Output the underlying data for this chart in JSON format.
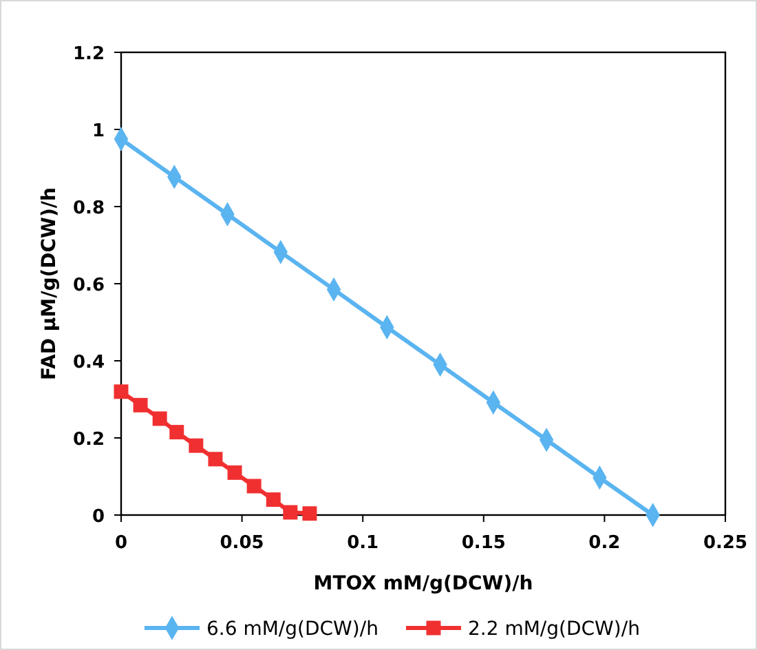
{
  "chart_data": {
    "type": "line",
    "xlabel": "MTOX mM/g(DCW)/h",
    "ylabel": "FAD μM/g(DCW)/h",
    "xlim": [
      0,
      0.25
    ],
    "xticks": [
      0,
      0.05,
      0.1,
      0.15,
      0.2,
      0.25
    ],
    "ylim": [
      0,
      1.2
    ],
    "yticks": [
      0,
      0.2,
      0.4,
      0.6,
      0.8,
      1,
      1.2
    ],
    "grid": false,
    "legend": "bottom",
    "series": [
      {
        "name": "6.6 mM/g(DCW)/h",
        "color": "#5ab4f0",
        "marker": "diamond",
        "x": [
          0,
          0.022,
          0.044,
          0.066,
          0.088,
          0.11,
          0.132,
          0.154,
          0.176,
          0.198,
          0.22
        ],
        "values": [
          0.975,
          0.877,
          0.78,
          0.682,
          0.585,
          0.487,
          0.39,
          0.292,
          0.195,
          0.097,
          0
        ]
      },
      {
        "name": "2.2 mM/g(DCW)/h",
        "color": "#f03030",
        "marker": "square",
        "x": [
          0,
          0.008,
          0.016,
          0.023,
          0.031,
          0.039,
          0.047,
          0.055,
          0.063,
          0.07,
          0.078
        ],
        "values": [
          0.32,
          0.285,
          0.25,
          0.215,
          0.18,
          0.145,
          0.11,
          0.075,
          0.04,
          0.007,
          0.004
        ]
      }
    ]
  }
}
